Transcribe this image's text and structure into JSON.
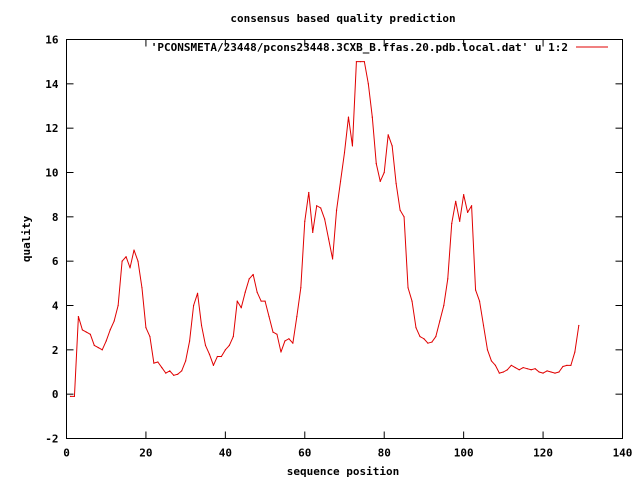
{
  "chart_data": {
    "type": "line",
    "title": "consensus based quality prediction",
    "xlabel": "sequence position",
    "ylabel": "quality",
    "xlim": [
      0,
      140
    ],
    "ylim": [
      -2,
      16
    ],
    "xticks": [
      0,
      20,
      40,
      60,
      80,
      100,
      120,
      140
    ],
    "yticks": [
      -2,
      0,
      2,
      4,
      6,
      8,
      10,
      12,
      14,
      16
    ],
    "grid": false,
    "legend_position": "top-right",
    "series": [
      {
        "name": "'PCONSMETA/23448/pcons23448.3CXB_B.ffas.20.pdb.local.dat' u 1:2",
        "color": "#e00000",
        "x": [
          1,
          2,
          3,
          4,
          5,
          6,
          7,
          8,
          9,
          10,
          11,
          12,
          13,
          14,
          15,
          16,
          17,
          18,
          19,
          20,
          21,
          22,
          23,
          24,
          25,
          26,
          27,
          28,
          29,
          30,
          31,
          32,
          33,
          34,
          35,
          36,
          37,
          38,
          39,
          40,
          41,
          42,
          43,
          44,
          45,
          46,
          47,
          48,
          49,
          50,
          51,
          52,
          53,
          54,
          55,
          56,
          57,
          58,
          59,
          60,
          61,
          62,
          63,
          64,
          65,
          66,
          67,
          68,
          69,
          70,
          71,
          72,
          73,
          74,
          75,
          76,
          77,
          78,
          79,
          80,
          81,
          82,
          83,
          84,
          85,
          86,
          87,
          88,
          89,
          90,
          91,
          92,
          93,
          94,
          95,
          96,
          97,
          98,
          99,
          100,
          101,
          102,
          103,
          104,
          105,
          106,
          107,
          108,
          109,
          110,
          111,
          112,
          113,
          114,
          115,
          116,
          117,
          118,
          119,
          120,
          121,
          122,
          123,
          124,
          125,
          126,
          127,
          128,
          129
        ],
        "y": [
          -0.1,
          -0.1,
          3.5,
          2.9,
          2.8,
          2.7,
          2.2,
          2.1,
          2.0,
          2.4,
          2.9,
          3.3,
          4.0,
          6.0,
          6.2,
          5.7,
          6.5,
          6.0,
          4.8,
          3.0,
          2.6,
          1.4,
          1.45,
          1.2,
          0.95,
          1.05,
          0.85,
          0.9,
          1.05,
          1.5,
          2.4,
          4.0,
          4.55,
          3.1,
          2.2,
          1.8,
          1.3,
          1.7,
          1.7,
          2.0,
          2.2,
          2.6,
          4.2,
          3.9,
          4.6,
          5.2,
          5.4,
          4.6,
          4.2,
          4.2,
          3.5,
          2.8,
          2.7,
          1.9,
          2.4,
          2.5,
          2.3,
          3.5,
          4.8,
          7.8,
          9.1,
          7.3,
          8.5,
          8.4,
          7.9,
          7.0,
          6.1,
          8.3,
          9.6,
          10.9,
          12.5,
          11.2,
          15.0,
          15.0,
          15.0,
          14.0,
          12.5,
          10.4,
          9.6,
          10.0,
          11.7,
          11.2,
          9.5,
          8.3,
          8.0,
          4.8,
          4.2,
          3.0,
          2.6,
          2.5,
          2.3,
          2.35,
          2.6,
          3.3,
          4.0,
          5.2,
          7.7,
          8.7,
          7.8,
          9.0,
          8.2,
          8.5,
          4.7,
          4.2,
          3.1,
          2.0,
          1.5,
          1.3,
          0.95,
          1.0,
          1.1,
          1.3,
          1.2,
          1.1,
          1.2,
          1.15,
          1.1,
          1.15,
          1.0,
          0.95,
          1.05,
          1.0,
          0.95,
          1.0,
          1.25,
          1.3,
          1.3,
          1.9,
          3.1
        ]
      }
    ]
  }
}
